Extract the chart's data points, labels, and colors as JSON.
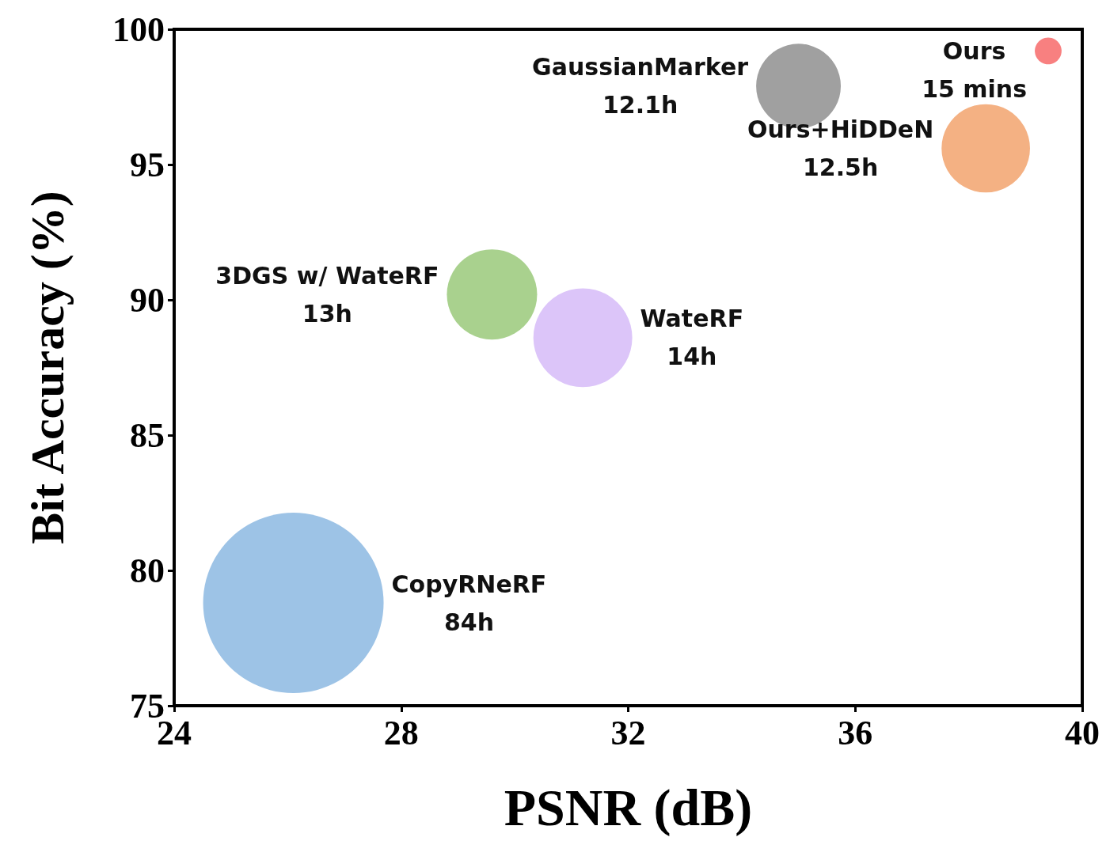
{
  "chart_data": {
    "type": "bubble",
    "xlabel": "PSNR (dB)",
    "ylabel": "Bit Accuracy (%)",
    "x": [
      39.4,
      38.3,
      35.0,
      29.6,
      31.2,
      26.1
    ],
    "values": [
      99.2,
      95.6,
      97.9,
      90.2,
      88.6,
      78.8
    ],
    "sizes": [
      0.022,
      0.24,
      0.22,
      0.25,
      0.3,
      1
    ],
    "colors": [
      "#f88080",
      "#f4b183",
      "#a0a0a0",
      "#a9d18e",
      "#dcc5f9",
      "#9dc3e6"
    ],
    "xlim": [
      24,
      40
    ],
    "xticks": [
      24,
      28,
      32,
      36,
      40
    ],
    "ylim": [
      75,
      100
    ],
    "yticks": [
      75,
      80,
      85,
      90,
      95,
      100
    ],
    "grid": false,
    "annotations": [
      "Ours\n15 mins",
      "Ours+HiDDeN\n12.5h",
      "GaussianMarker\n12.1h",
      "3DGS w/ WateRF\n13h",
      "WateRF\n14h",
      "CopyRNeRF\n84h"
    ]
  }
}
